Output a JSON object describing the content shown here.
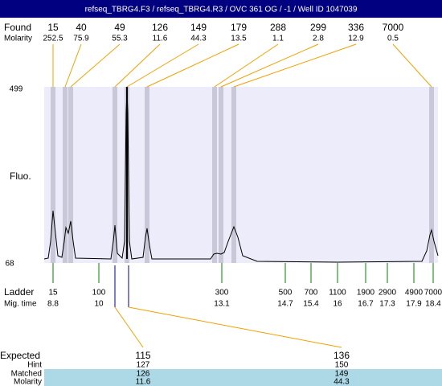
{
  "header": {
    "title": "refseq_TBRG4.F3 / refseq_TBRG4.R3 / OVC 361 OG / -1 / Well ID 1047039"
  },
  "found": {
    "label": "Found",
    "sizes": [
      15,
      40,
      49,
      126,
      149,
      179,
      288,
      299,
      336,
      7000
    ],
    "molarity_label": "Molarity",
    "molarity": [
      252.5,
      75.9,
      55.3,
      11.6,
      44.3,
      13.5,
      1.1,
      2.8,
      12.9,
      0.5
    ]
  },
  "y_axis": {
    "label": "Fluo.",
    "top": 499,
    "bottom": 68
  },
  "ladder": {
    "label": "Ladder",
    "sizes": [
      15,
      100,
      300,
      500,
      700,
      1100,
      1900,
      2900,
      4900,
      7000
    ],
    "mig_label": "Mig. time",
    "mig_times": [
      8.8,
      10,
      13.1,
      14.7,
      15.4,
      16,
      16.7,
      17.3,
      17.9,
      18.4
    ]
  },
  "expected": {
    "label": "Expected",
    "values": [
      115,
      136
    ],
    "hint_label": "Hint",
    "hint": [
      127,
      150
    ],
    "matched_label": "Matched",
    "matched": [
      126,
      149
    ],
    "molarity_label": "Molarity",
    "molarity": [
      11.6,
      44.3
    ]
  }
}
